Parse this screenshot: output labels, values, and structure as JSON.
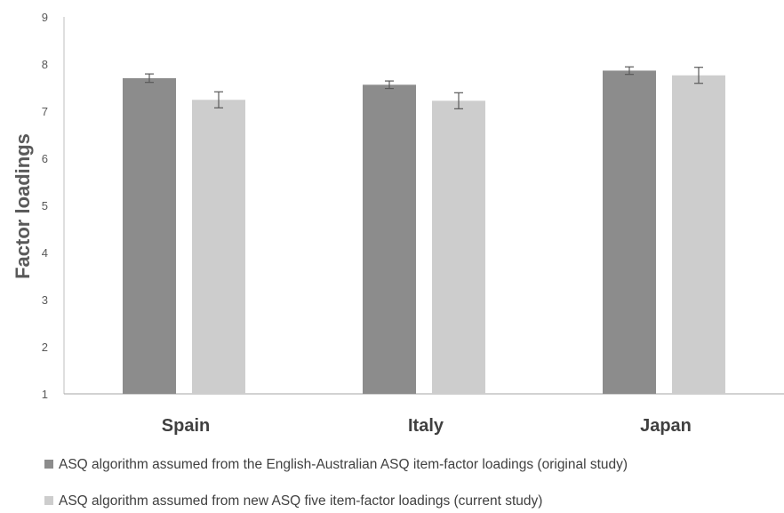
{
  "chart_data": {
    "type": "bar",
    "title": "",
    "xlabel": "",
    "ylabel": "Factor loadings",
    "ylim": [
      1,
      9
    ],
    "yticks": [
      1,
      2,
      3,
      4,
      5,
      6,
      7,
      8,
      9
    ],
    "grid": false,
    "legend_position": "bottom",
    "categories": [
      "Spain",
      "Italy",
      "Japan"
    ],
    "series": [
      {
        "name": "ASQ algorithm assumed from the English-Australian ASQ  item-factor loadings (original study)",
        "color": "#8c8c8c",
        "values": [
          7.7,
          7.56,
          7.86
        ],
        "error": [
          0.09,
          0.08,
          0.08
        ]
      },
      {
        "name": "ASQ algorithm assumed from new ASQ five item-factor loadings (current study)",
        "color": "#cdcdcd",
        "values": [
          7.24,
          7.22,
          7.76
        ],
        "error": [
          0.17,
          0.17,
          0.17
        ]
      }
    ]
  }
}
